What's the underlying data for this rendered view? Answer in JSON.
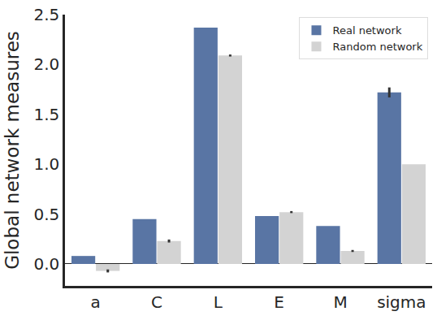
{
  "chart_data": {
    "type": "bar",
    "y_label": "Global network measures",
    "categories": [
      "a",
      "C",
      "L",
      "E",
      "M",
      "sigma"
    ],
    "series": [
      {
        "name": "Real network",
        "color": "#5975a4",
        "values": [
          0.08,
          0.45,
          2.37,
          0.48,
          0.38,
          1.72
        ],
        "errors": [
          0,
          0,
          0,
          0,
          0,
          0.05
        ]
      },
      {
        "name": "Random network",
        "color": "#d3d3d3",
        "values": [
          -0.07,
          0.23,
          2.09,
          0.52,
          0.13,
          1.0
        ],
        "errors": [
          0.015,
          0.015,
          0.01,
          0.01,
          0.01,
          0
        ]
      }
    ],
    "ylim": [
      -0.22,
      2.5
    ],
    "yticks": [
      {
        "value": 0,
        "label": "0.0"
      },
      0.5,
      {
        "value": 1,
        "label": "1.0"
      },
      1.5,
      {
        "value": 2,
        "label": "2.0"
      },
      2.5
    ],
    "grid": false,
    "legend": "upper right"
  }
}
